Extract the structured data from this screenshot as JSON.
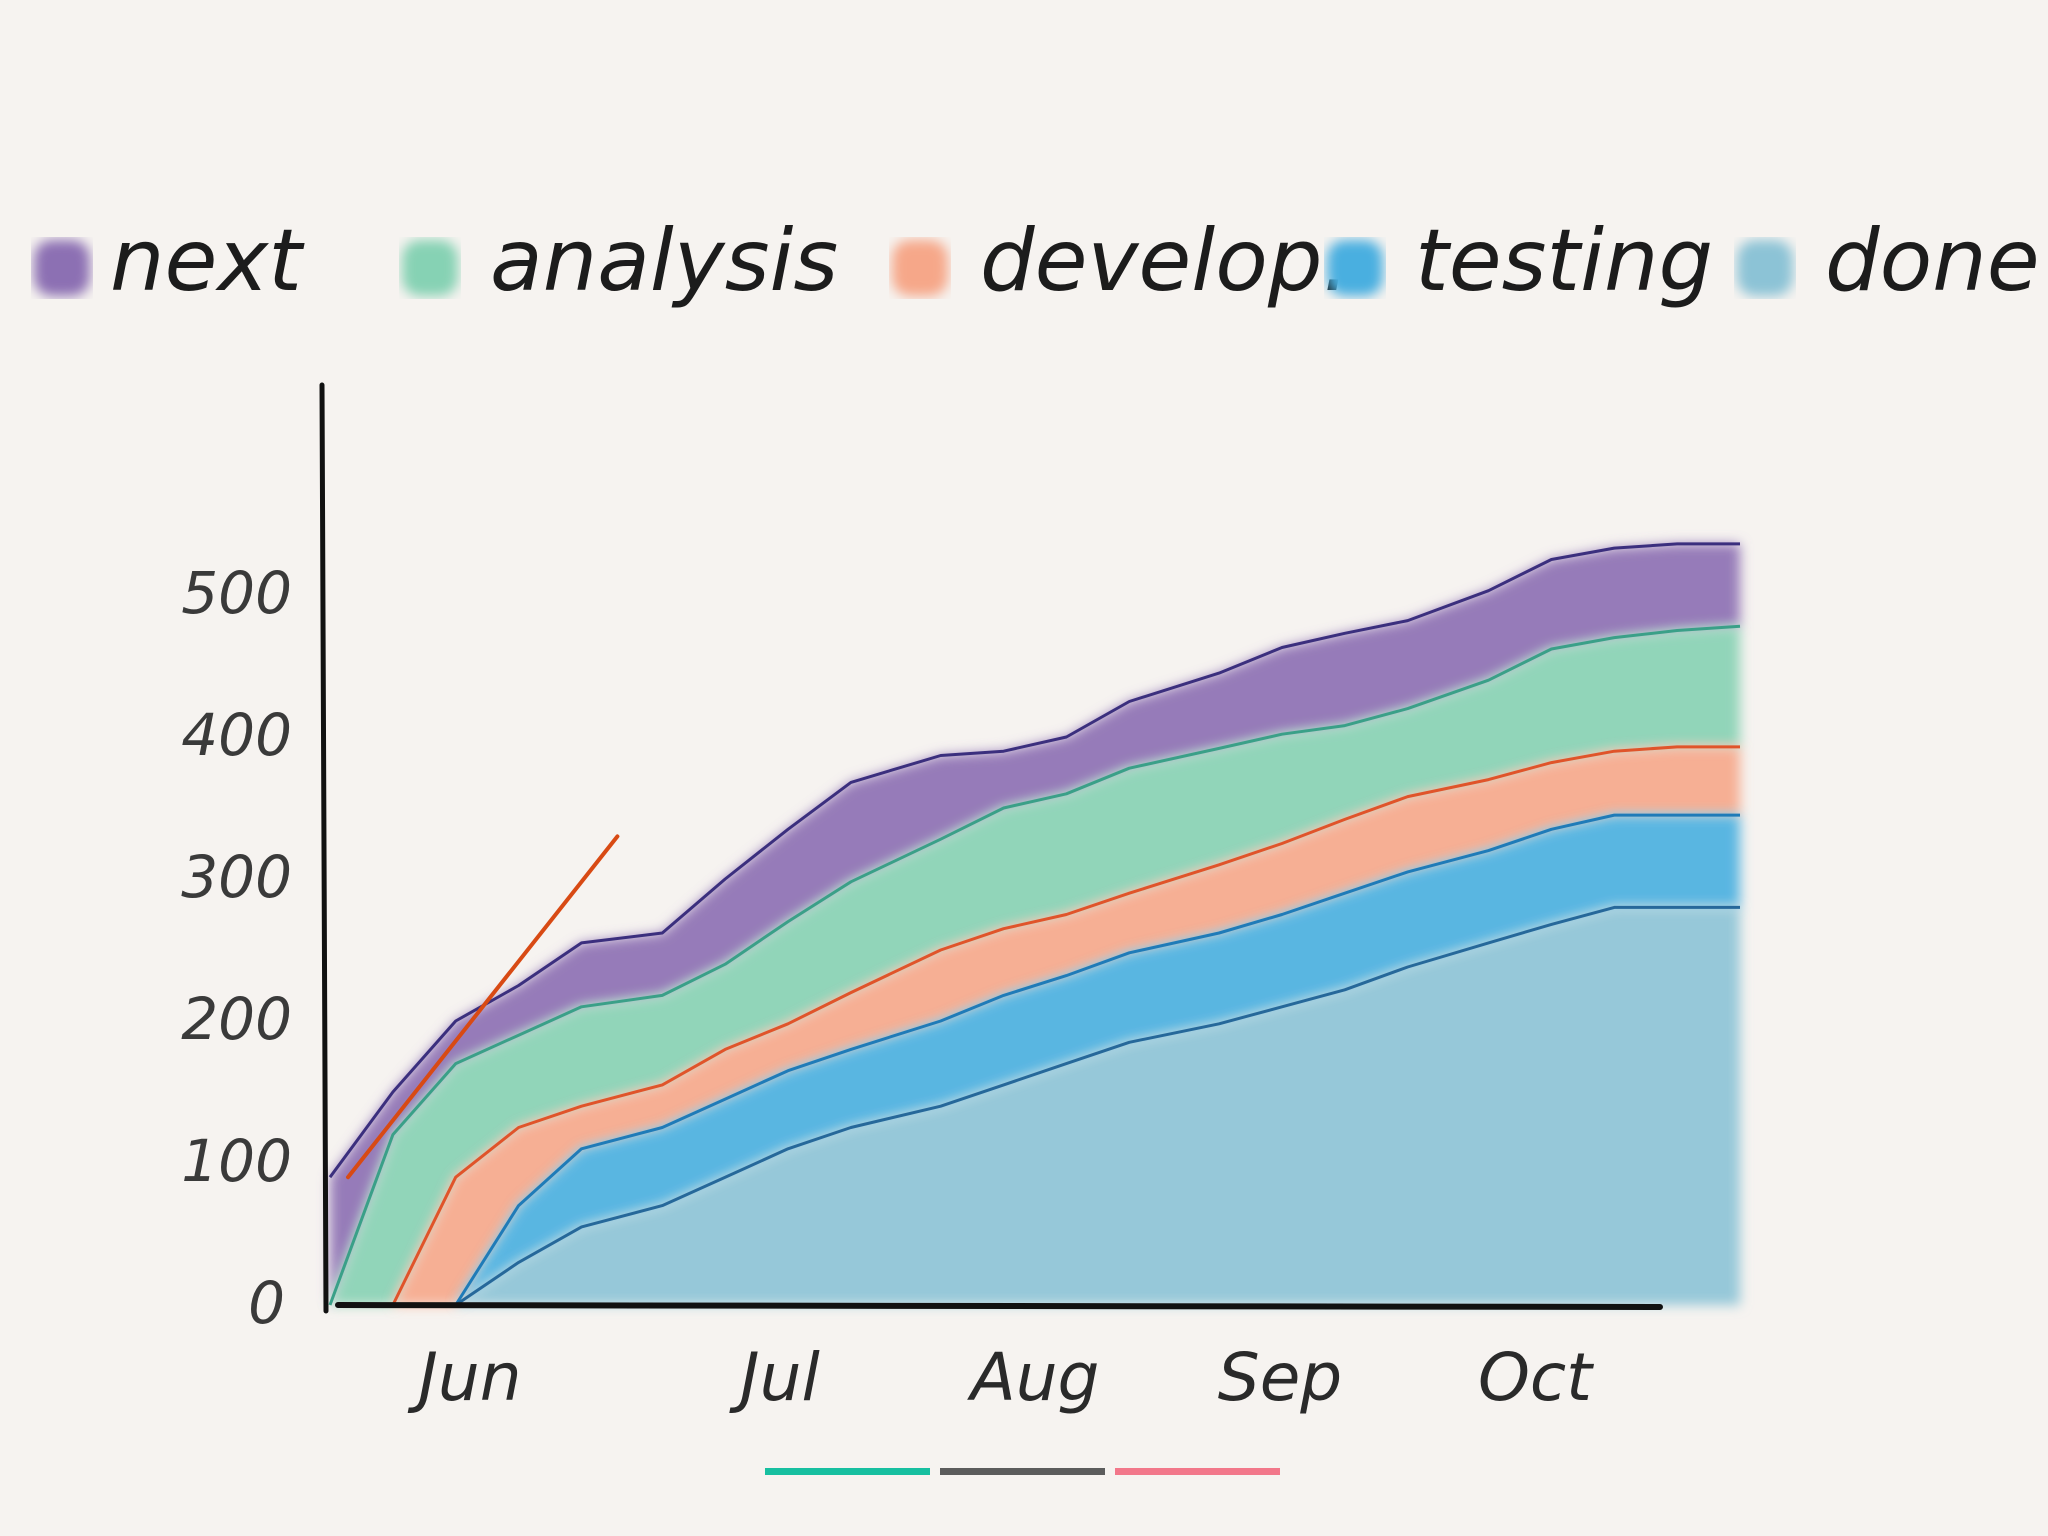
{
  "chart_data": {
    "type": "area",
    "title": "",
    "xlabel": "",
    "ylabel": "",
    "x_ticks": [
      "Jun",
      "Jul",
      "Aug",
      "Sep",
      "Oct"
    ],
    "y_ticks": [
      "0",
      "100",
      "200",
      "300",
      "400",
      "500"
    ],
    "ylim": [
      0,
      560
    ],
    "x": [
      "May 25",
      "Jun 1",
      "Jun 8",
      "Jun 15",
      "Jun 22",
      "Jul 1",
      "Jul 8",
      "Jul 15",
      "Jul 22",
      "Aug 1",
      "Aug 8",
      "Aug 15",
      "Aug 22",
      "Sep 1",
      "Sep 8",
      "Sep 15",
      "Sep 22",
      "Oct 1",
      "Oct 8",
      "Oct 15",
      "Oct 22",
      "Oct 29"
    ],
    "series": [
      {
        "name": "next",
        "color": "#8c6fb3",
        "line": "#3b2f7e",
        "values": [
          90,
          150,
          200,
          225,
          255,
          262,
          300,
          335,
          368,
          387,
          390,
          400,
          425,
          445,
          463,
          473,
          482,
          503,
          525,
          533,
          536,
          536
        ]
      },
      {
        "name": "analysis",
        "color": "#86d2b4",
        "line": "#3aa088",
        "values": [
          0,
          120,
          170,
          190,
          210,
          218,
          240,
          270,
          298,
          328,
          350,
          360,
          378,
          392,
          402,
          408,
          420,
          440,
          462,
          470,
          475,
          478
        ]
      },
      {
        "name": "develop.",
        "color": "#f6a789",
        "line": "#e0542a",
        "values": [
          0,
          0,
          90,
          125,
          140,
          155,
          180,
          198,
          220,
          250,
          265,
          275,
          290,
          310,
          325,
          342,
          358,
          370,
          382,
          390,
          393,
          393
        ]
      },
      {
        "name": "testing",
        "color": "#48afe0",
        "line": "#1f7bb8",
        "values": [
          0,
          0,
          0,
          70,
          110,
          125,
          145,
          165,
          180,
          200,
          218,
          232,
          248,
          262,
          275,
          290,
          305,
          320,
          335,
          345,
          345,
          345
        ]
      },
      {
        "name": "done",
        "color": "#8cc3d6",
        "line": "#26689a",
        "values": [
          0,
          0,
          0,
          30,
          55,
          70,
          90,
          110,
          125,
          140,
          155,
          170,
          185,
          198,
          210,
          222,
          238,
          255,
          268,
          280,
          280,
          280
        ]
      }
    ],
    "trend_line": {
      "color": "#d84a14",
      "from": [
        "May 27",
        90
      ],
      "to": [
        "Jun 26",
        330
      ]
    },
    "legend_position": "top",
    "grid": false
  },
  "legend": {
    "items": [
      {
        "label": "next",
        "color": "#8c6fb3"
      },
      {
        "label": "analysis",
        "color": "#86d2b4"
      },
      {
        "label": "develop.",
        "color": "#f6a789"
      },
      {
        "label": "testing",
        "color": "#48afe0"
      },
      {
        "label": "done",
        "color": "#8cc3d6"
      }
    ]
  },
  "underline_bars": [
    "#17bfa0",
    "#5c5c5c",
    "#f2778a"
  ]
}
